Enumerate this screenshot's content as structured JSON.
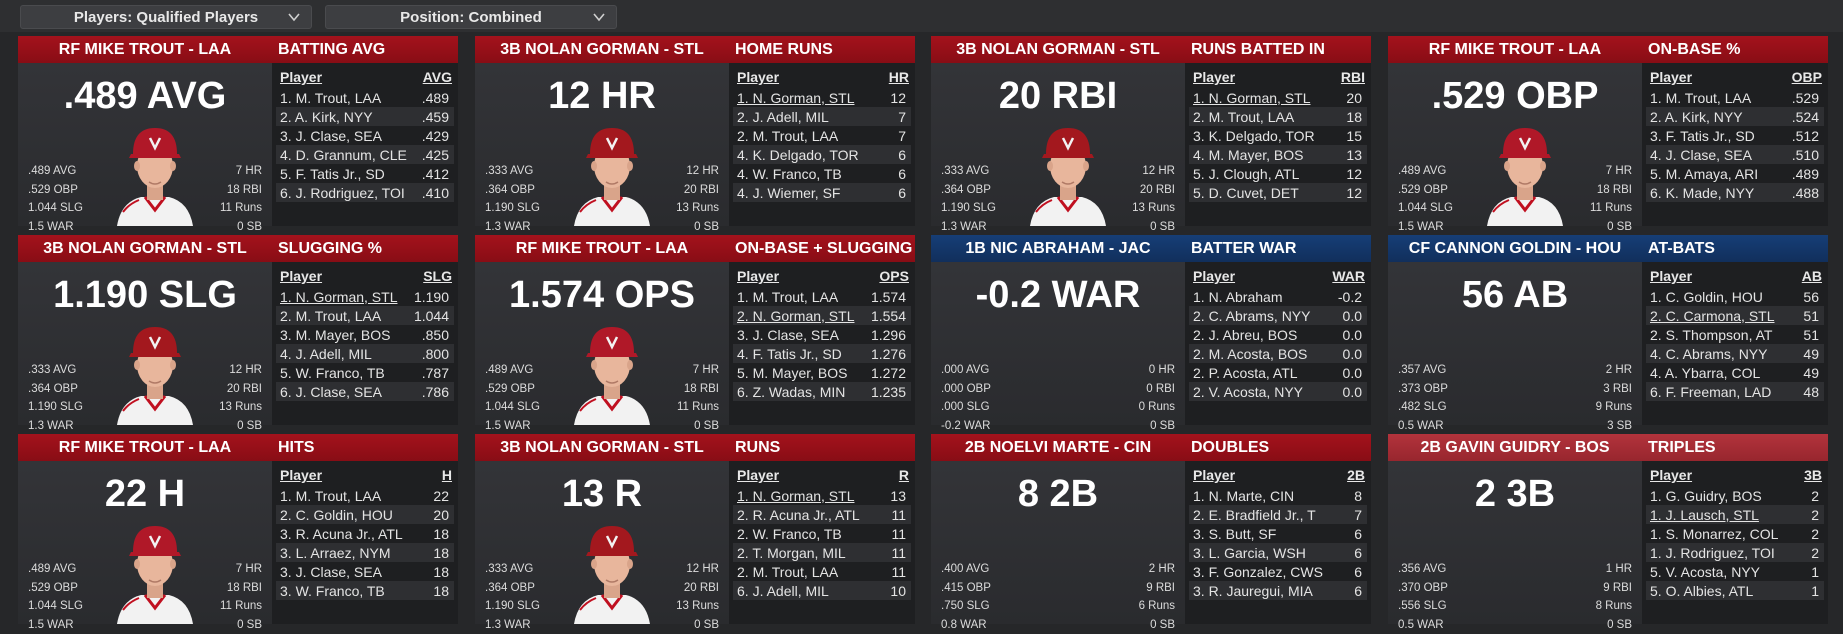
{
  "filters": {
    "players": "Players: Qualified Players",
    "position": "Position: Combined"
  },
  "colors": {
    "header_red": "#990f18",
    "header_blue": "#14376a",
    "header_light_red": "#a62e36",
    "panel": "#2c2d30",
    "list_bg": "#1e1f21"
  },
  "cards": [
    {
      "player": "RF MIKE TROUT - LAA",
      "stat": "BATTING AVG",
      "value": ".489 AVG",
      "avatar": "angels-player-photo",
      "left": [
        ".489 AVG",
        ".529 OBP",
        "1.044 SLG",
        "1.5 WAR"
      ],
      "right": [
        "7 HR",
        "18 RBI",
        "11 Runs",
        "0 SB"
      ],
      "col": "AVG",
      "rows": [
        [
          "1. M. Trout, LAA",
          ".489"
        ],
        [
          "2. A. Kirk, NYY",
          ".459"
        ],
        [
          "3. J. Clase, SEA",
          ".429"
        ],
        [
          "4. D. Grannum, CLE",
          ".425"
        ],
        [
          "5. F. Tatis Jr., SD",
          ".412"
        ],
        [
          "6. J. Rodriguez, TOI",
          ".410"
        ]
      ]
    },
    {
      "player": "3B NOLAN GORMAN - STL",
      "stat": "HOME RUNS",
      "value": "12 HR",
      "avatar": "cardinals-player-photo",
      "left": [
        ".333 AVG",
        ".364 OBP",
        "1.190 SLG",
        "1.3 WAR"
      ],
      "right": [
        "12 HR",
        "20 RBI",
        "13 Runs",
        "0 SB"
      ],
      "col": "HR",
      "rows": [
        [
          "1. N. Gorman, STL",
          "12"
        ],
        [
          "2. J. Adell, MIL",
          "7"
        ],
        [
          "2. M. Trout, LAA",
          "7"
        ],
        [
          "4. K. Delgado, TOR",
          "6"
        ],
        [
          "4. W. Franco, TB",
          "6"
        ],
        [
          "4. J. Wiemer, SF",
          "6"
        ]
      ]
    },
    {
      "player": "3B NOLAN GORMAN - STL",
      "stat": "RUNS BATTED IN",
      "value": "20 RBI",
      "avatar": "cardinals-player-photo",
      "left": [
        ".333 AVG",
        ".364 OBP",
        "1.190 SLG",
        "1.3 WAR"
      ],
      "right": [
        "12 HR",
        "20 RBI",
        "13 Runs",
        "0 SB"
      ],
      "col": "RBI",
      "rows": [
        [
          "1. N. Gorman, STL",
          "20"
        ],
        [
          "2. M. Trout, LAA",
          "18"
        ],
        [
          "3. K. Delgado, TOR",
          "15"
        ],
        [
          "4. M. Mayer, BOS",
          "13"
        ],
        [
          "5. J. Clough, ATL",
          "12"
        ],
        [
          "5. D. Cuvet, DET",
          "12"
        ]
      ]
    },
    {
      "player": "RF MIKE TROUT - LAA",
      "stat": "ON-BASE %",
      "value": ".529 OBP",
      "avatar": "angels-player-photo",
      "left": [
        ".489 AVG",
        ".529 OBP",
        "1.044 SLG",
        "1.5 WAR"
      ],
      "right": [
        "7 HR",
        "18 RBI",
        "11 Runs",
        "0 SB"
      ],
      "col": "OBP",
      "rows": [
        [
          "1. M. Trout, LAA",
          ".529"
        ],
        [
          "2. A. Kirk, NYY",
          ".524"
        ],
        [
          "3. F. Tatis Jr., SD",
          ".512"
        ],
        [
          "4. J. Clase, SEA",
          ".510"
        ],
        [
          "5. M. Amaya, ARI",
          ".489"
        ],
        [
          "6. K. Made, NYY",
          ".488"
        ]
      ]
    },
    {
      "player": "3B NOLAN GORMAN - STL",
      "stat": "SLUGGING %",
      "value": "1.190 SLG",
      "avatar": "cardinals-player-photo",
      "left": [
        ".333 AVG",
        ".364 OBP",
        "1.190 SLG",
        "1.3 WAR"
      ],
      "right": [
        "12 HR",
        "20 RBI",
        "13 Runs",
        "0 SB"
      ],
      "col": "SLG",
      "rows": [
        [
          "1. N. Gorman, STL",
          "1.190"
        ],
        [
          "2. M. Trout, LAA",
          "1.044"
        ],
        [
          "3. M. Mayer, BOS",
          ".850"
        ],
        [
          "4. J. Adell, MIL",
          ".800"
        ],
        [
          "5. W. Franco, TB",
          ".787"
        ],
        [
          "6. J. Clase, SEA",
          ".786"
        ]
      ]
    },
    {
      "player": "RF MIKE TROUT - LAA",
      "stat": "ON-BASE + SLUGGING",
      "value": "1.574 OPS",
      "avatar": "angels-player-photo",
      "left": [
        ".489 AVG",
        ".529 OBP",
        "1.044 SLG",
        "1.5 WAR"
      ],
      "right": [
        "7 HR",
        "18 RBI",
        "11 Runs",
        "0 SB"
      ],
      "col": "OPS",
      "rows": [
        [
          "1. M. Trout, LAA",
          "1.574"
        ],
        [
          "2. N. Gorman, STL",
          "1.554"
        ],
        [
          "3. J. Clase, SEA",
          "1.296"
        ],
        [
          "4. F. Tatis Jr., SD",
          "1.276"
        ],
        [
          "5. M. Mayer, BOS",
          "1.272"
        ],
        [
          "6. Z. Wadas, MIN",
          "1.235"
        ]
      ]
    },
    {
      "player": "1B NIC ABRAHAM - JAC",
      "stat": "BATTER WAR",
      "value": "-0.2 WAR",
      "avatar": "",
      "left": [
        ".000 AVG",
        ".000 OBP",
        ".000 SLG",
        "-0.2 WAR"
      ],
      "right": [
        "0 HR",
        "0 RBI",
        "0 Runs",
        "0 SB"
      ],
      "col": "WAR",
      "rows": [
        [
          "1. N. Abraham",
          "-0.2"
        ],
        [
          "2. C. Abrams, NYY",
          "0.0"
        ],
        [
          "2. J. Abreu, BOS",
          "0.0"
        ],
        [
          "2. M. Acosta, BOS",
          "0.0"
        ],
        [
          "2. P. Acosta, ATL",
          "0.0"
        ],
        [
          "2. V. Acosta, NYY",
          "0.0"
        ]
      ]
    },
    {
      "player": "CF CANNON GOLDIN - HOU",
      "stat": "AT-BATS",
      "value": "56 AB",
      "avatar": "",
      "left": [
        ".357 AVG",
        ".373 OBP",
        ".482 SLG",
        "0.5 WAR"
      ],
      "right": [
        "2 HR",
        "3 RBI",
        "9 Runs",
        "3 SB"
      ],
      "col": "AB",
      "rows": [
        [
          "1. C. Goldin, HOU",
          "56"
        ],
        [
          "2. C. Carmona, STL",
          "51"
        ],
        [
          "2. S. Thompson, AT",
          "51"
        ],
        [
          "4. C. Abrams, NYY",
          "49"
        ],
        [
          "4. A. Ybarra, COL",
          "49"
        ],
        [
          "6. F. Freeman, LAD",
          "48"
        ]
      ]
    },
    {
      "player": "RF MIKE TROUT - LAA",
      "stat": "HITS",
      "value": "22 H",
      "avatar": "angels-player-photo",
      "left": [
        ".489 AVG",
        ".529 OBP",
        "1.044 SLG",
        "1.5 WAR"
      ],
      "right": [
        "7 HR",
        "18 RBI",
        "11 Runs",
        "0 SB"
      ],
      "col": "H",
      "rows": [
        [
          "1. M. Trout, LAA",
          "22"
        ],
        [
          "2. C. Goldin, HOU",
          "20"
        ],
        [
          "3. R. Acuna Jr., ATL",
          "18"
        ],
        [
          "3. L. Arraez, NYM",
          "18"
        ],
        [
          "3. J. Clase, SEA",
          "18"
        ],
        [
          "3. W. Franco, TB",
          "18"
        ]
      ]
    },
    {
      "player": "3B NOLAN GORMAN - STL",
      "stat": "RUNS",
      "value": "13 R",
      "avatar": "cardinals-player-photo",
      "left": [
        ".333 AVG",
        ".364 OBP",
        "1.190 SLG",
        "1.3 WAR"
      ],
      "right": [
        "12 HR",
        "20 RBI",
        "13 Runs",
        "0 SB"
      ],
      "col": "R",
      "rows": [
        [
          "1. N. Gorman, STL",
          "13"
        ],
        [
          "2. R. Acuna Jr., ATL",
          "11"
        ],
        [
          "2. W. Franco, TB",
          "11"
        ],
        [
          "2. T. Morgan, MIL",
          "11"
        ],
        [
          "2. M. Trout, LAA",
          "11"
        ],
        [
          "6. J. Adell, MIL",
          "10"
        ]
      ]
    },
    {
      "player": "2B NOELVI MARTE - CIN",
      "stat": "DOUBLES",
      "value": "8 2B",
      "avatar": "",
      "left": [
        ".400 AVG",
        ".415 OBP",
        ".750 SLG",
        "0.8 WAR"
      ],
      "right": [
        "2 HR",
        "9 RBI",
        "6 Runs",
        "0 SB"
      ],
      "col": "2B",
      "rows": [
        [
          "1. N. Marte, CIN",
          "8"
        ],
        [
          "2. E. Bradfield Jr., T",
          "7"
        ],
        [
          "3. S. Butt, SF",
          "6"
        ],
        [
          "3. L. Garcia, WSH",
          "6"
        ],
        [
          "3. F. Gonzalez, CWS",
          "6"
        ],
        [
          "3. R. Jauregui, MIA",
          "6"
        ]
      ]
    },
    {
      "player": "2B GAVIN GUIDRY - BOS",
      "stat": "TRIPLES",
      "value": "2 3B",
      "avatar": "",
      "left": [
        ".356 AVG",
        ".370 OBP",
        ".556 SLG",
        "0.5 WAR"
      ],
      "right": [
        "1 HR",
        "9 RBI",
        "8 Runs",
        "0 SB"
      ],
      "col": "3B",
      "rows": [
        [
          "1. G. Guidry, BOS",
          "2"
        ],
        [
          "1. J. Lausch, STL",
          "2"
        ],
        [
          "1. S. Monarrez, COL",
          "2"
        ],
        [
          "1. J. Rodriguez, TOI",
          "2"
        ],
        [
          "5. V. Acosta, NYY",
          "1"
        ],
        [
          "5. O. Albies, ATL",
          "1"
        ]
      ]
    }
  ]
}
